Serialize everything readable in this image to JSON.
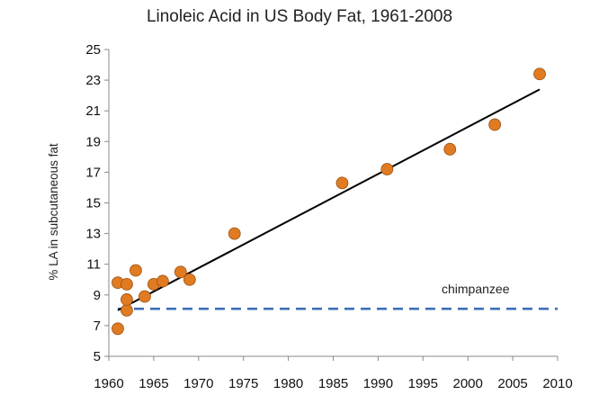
{
  "chart_data": {
    "type": "scatter",
    "title": "Linoleic Acid in US Body Fat, 1961-2008",
    "xlabel": "",
    "ylabel": "% LA in subcutaneous fat",
    "xlim": [
      1960,
      2010
    ],
    "ylim": [
      5,
      25
    ],
    "xticks": [
      1960,
      1965,
      1970,
      1975,
      1980,
      1985,
      1990,
      1995,
      2000,
      2005,
      2010
    ],
    "yticks": [
      5,
      7,
      9,
      11,
      13,
      15,
      17,
      19,
      21,
      23,
      25
    ],
    "grid": false,
    "colors": {
      "points": "#e07b22",
      "point_edge": "#9c5214",
      "trend": "#000000",
      "reference": "#3b6fb6"
    },
    "series": [
      {
        "x": [
          1961,
          1961,
          1962,
          1962,
          1962,
          1963,
          1964,
          1965,
          1966,
          1968,
          1969,
          1974,
          1986,
          1991,
          1998,
          2003,
          2008
        ],
        "y": [
          6.8,
          9.8,
          8.0,
          8.7,
          9.7,
          10.6,
          8.9,
          9.7,
          9.9,
          10.5,
          10.0,
          13.0,
          16.3,
          17.2,
          18.5,
          20.1,
          23.4
        ]
      }
    ],
    "trendline": {
      "x": [
        1961,
        2008
      ],
      "y": [
        8.0,
        22.4
      ]
    },
    "reference_line": {
      "y": 8.1,
      "x": [
        1961,
        2010
      ],
      "style": "dashed",
      "label": "chimpanzee"
    }
  }
}
